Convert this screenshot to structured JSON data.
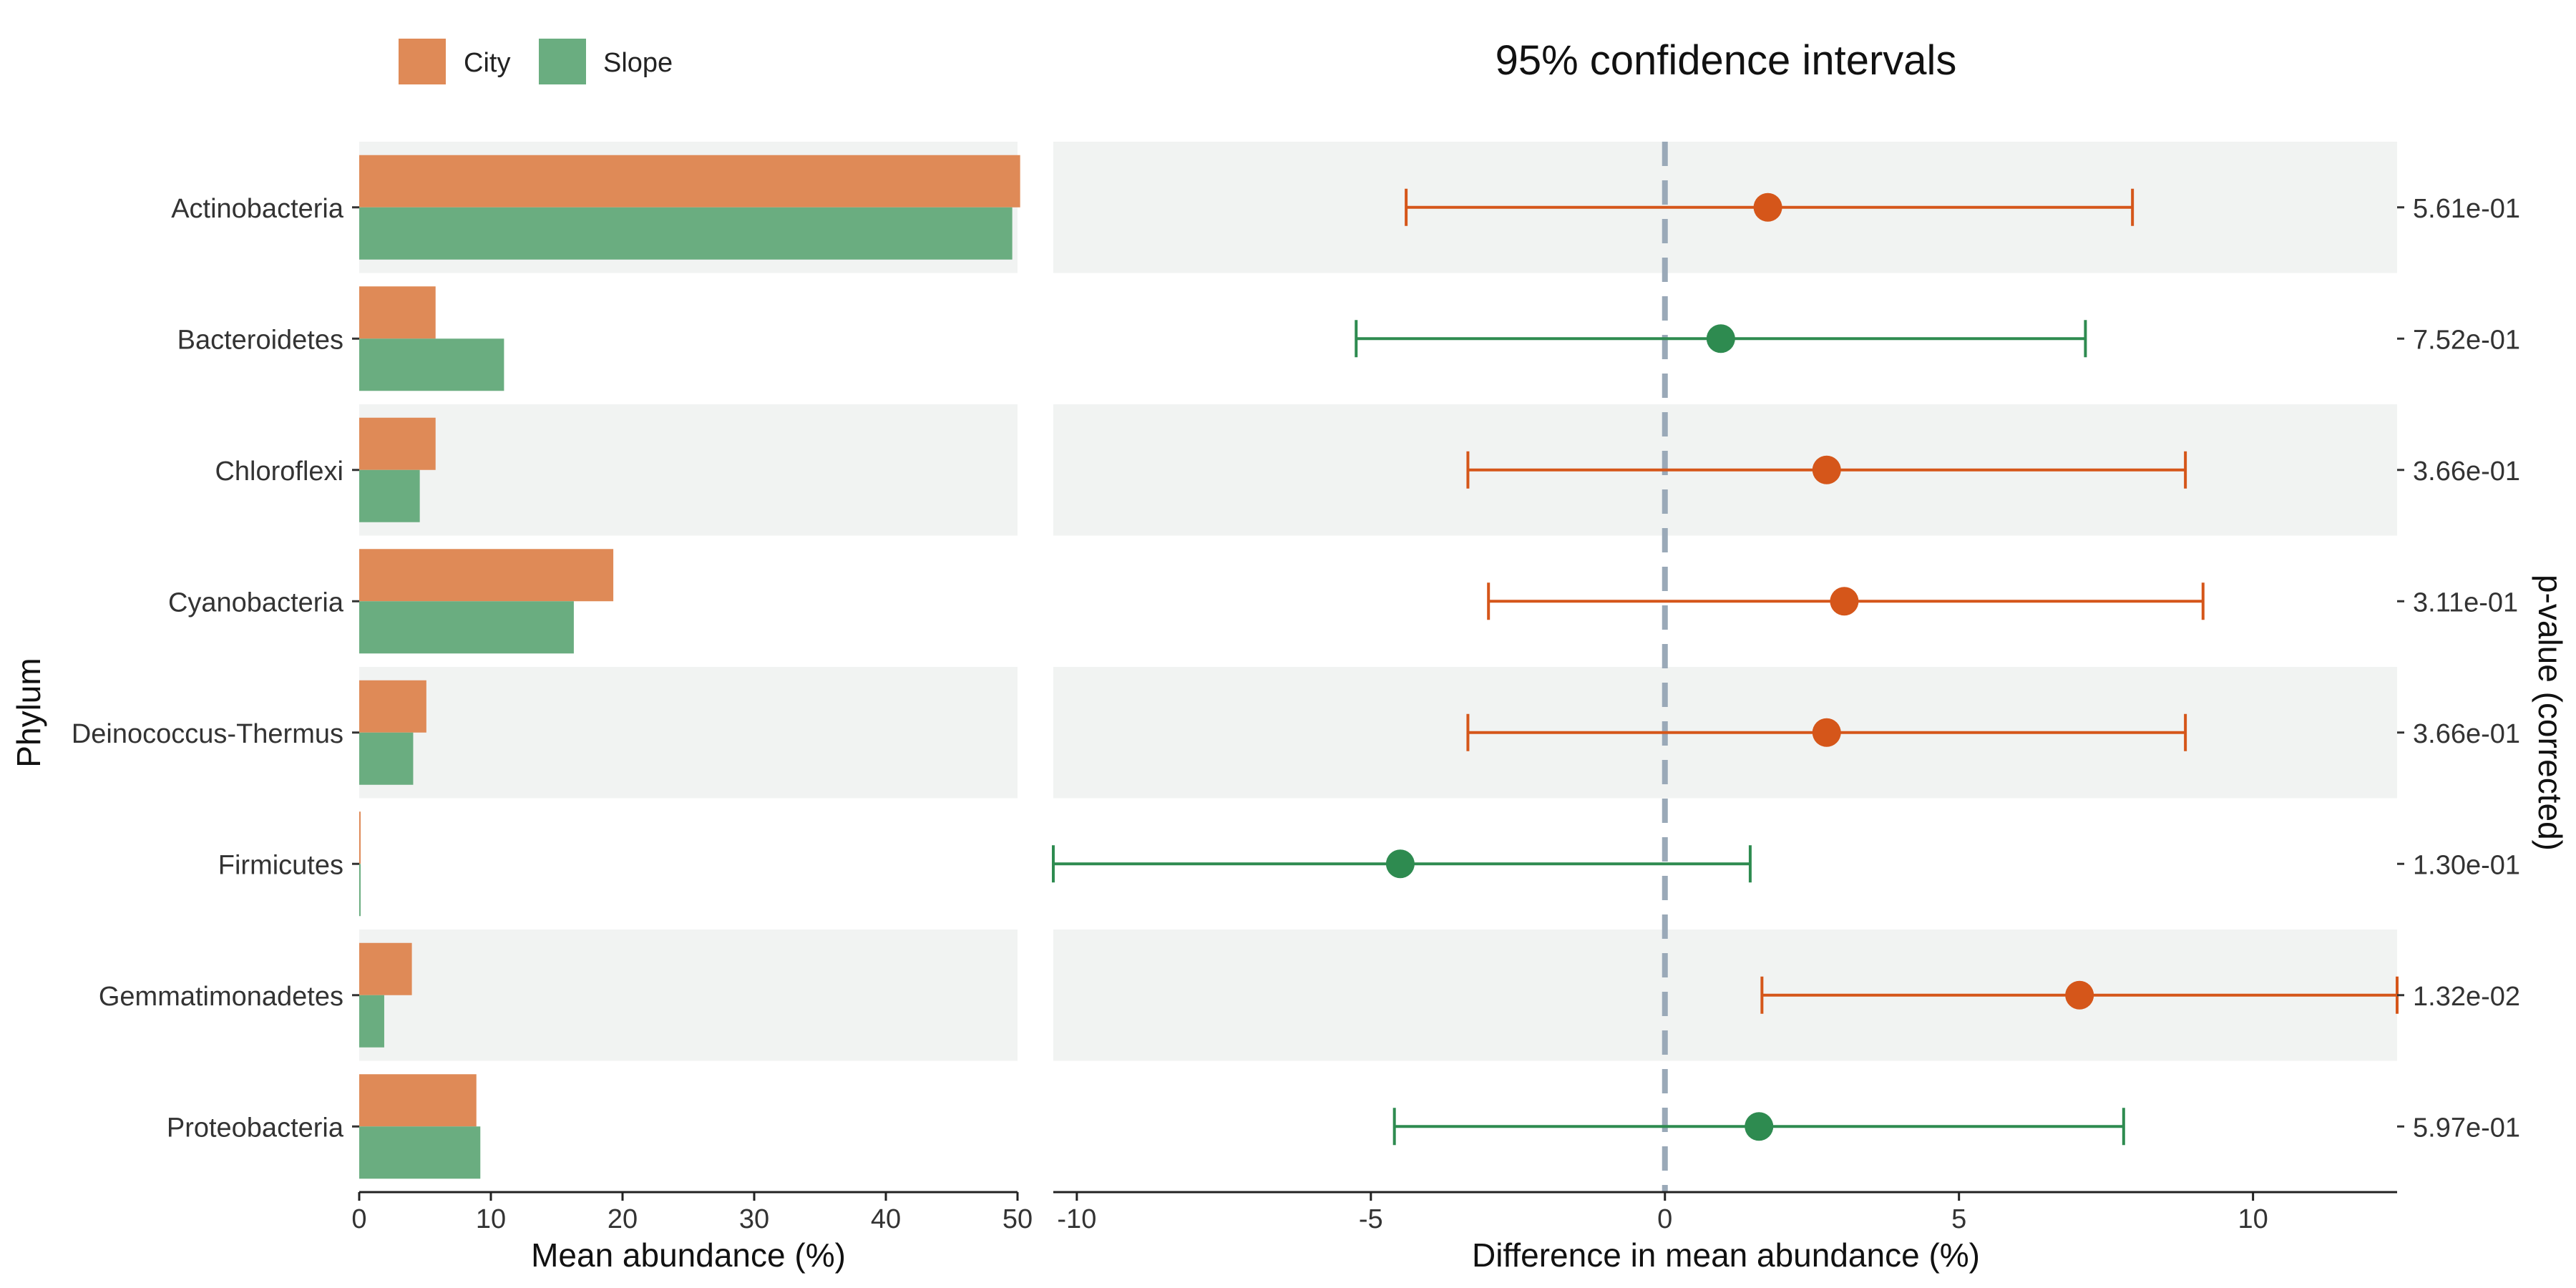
{
  "legend": {
    "items": [
      {
        "label": "City",
        "color": "#DF8A57"
      },
      {
        "label": "Slope",
        "color": "#6AAD80"
      }
    ]
  },
  "right_title": "95% confidence intervals",
  "colors": {
    "city_bar": "#DF8A57",
    "slope_bar": "#6AAD80",
    "city_point": "#D5561A",
    "slope_point": "#2E8B50",
    "band": "#F1F3F2",
    "zero_line": "#9AA9B8"
  },
  "chart_data": [
    {
      "type": "bar",
      "orientation": "horizontal",
      "categories": [
        "Actinobacteria",
        "Bacteroidetes",
        "Chloroflexi",
        "Cyanobacteria",
        "Deinococcus-Thermus",
        "Firmicutes",
        "Gemmatimonadetes",
        "Proteobacteria"
      ],
      "series": [
        {
          "name": "City",
          "values": [
            50.2,
            5.8,
            5.8,
            19.3,
            5.1,
            0.1,
            4.0,
            8.9
          ]
        },
        {
          "name": "Slope",
          "values": [
            49.6,
            11.0,
            4.6,
            16.3,
            4.1,
            0.1,
            1.9,
            9.2
          ]
        }
      ],
      "ylabel": "Phylum",
      "xlabel": "Mean abundance (%)",
      "xlim": [
        0,
        50
      ],
      "xticks": [
        0,
        10,
        20,
        30,
        40,
        50
      ],
      "legend_position": "top-left"
    },
    {
      "type": "errorbar",
      "title": "95% confidence intervals",
      "categories": [
        "Actinobacteria",
        "Bacteroidetes",
        "Chloroflexi",
        "Cyanobacteria",
        "Deinococcus-Thermus",
        "Firmicutes",
        "Gemmatimonadetes",
        "Proteobacteria"
      ],
      "points": [
        {
          "category": "Actinobacteria",
          "estimate": 1.75,
          "lower": -4.4,
          "upper": 7.95,
          "group": "City",
          "pvalue": "5.61e-01"
        },
        {
          "category": "Bacteroidetes",
          "estimate": 0.95,
          "lower": -5.25,
          "upper": 7.15,
          "group": "Slope",
          "pvalue": "7.52e-01"
        },
        {
          "category": "Chloroflexi",
          "estimate": 2.75,
          "lower": -3.35,
          "upper": 8.85,
          "group": "City",
          "pvalue": "3.66e-01"
        },
        {
          "category": "Cyanobacteria",
          "estimate": 3.05,
          "lower": -3.0,
          "upper": 9.15,
          "group": "City",
          "pvalue": "3.11e-01"
        },
        {
          "category": "Deinococcus-Thermus",
          "estimate": 2.75,
          "lower": -3.35,
          "upper": 8.85,
          "group": "City",
          "pvalue": "3.66e-01"
        },
        {
          "category": "Firmicutes",
          "estimate": -4.5,
          "lower": -10.4,
          "upper": 1.45,
          "group": "Slope",
          "pvalue": "1.30e-01"
        },
        {
          "category": "Gemmatimonadetes",
          "estimate": 7.05,
          "lower": 1.65,
          "upper": 12.45,
          "group": "City",
          "pvalue": "1.32e-02"
        },
        {
          "category": "Proteobacteria",
          "estimate": 1.6,
          "lower": -4.6,
          "upper": 7.8,
          "group": "Slope",
          "pvalue": "5.97e-01"
        }
      ],
      "xlabel": "Difference in mean abundance (%)",
      "xlim": [
        -10.4,
        12.45
      ],
      "xticks": [
        -10,
        -5,
        0,
        5,
        10
      ],
      "reference_line": 0,
      "secondary_ylabel": "p-value (corrected)"
    }
  ]
}
